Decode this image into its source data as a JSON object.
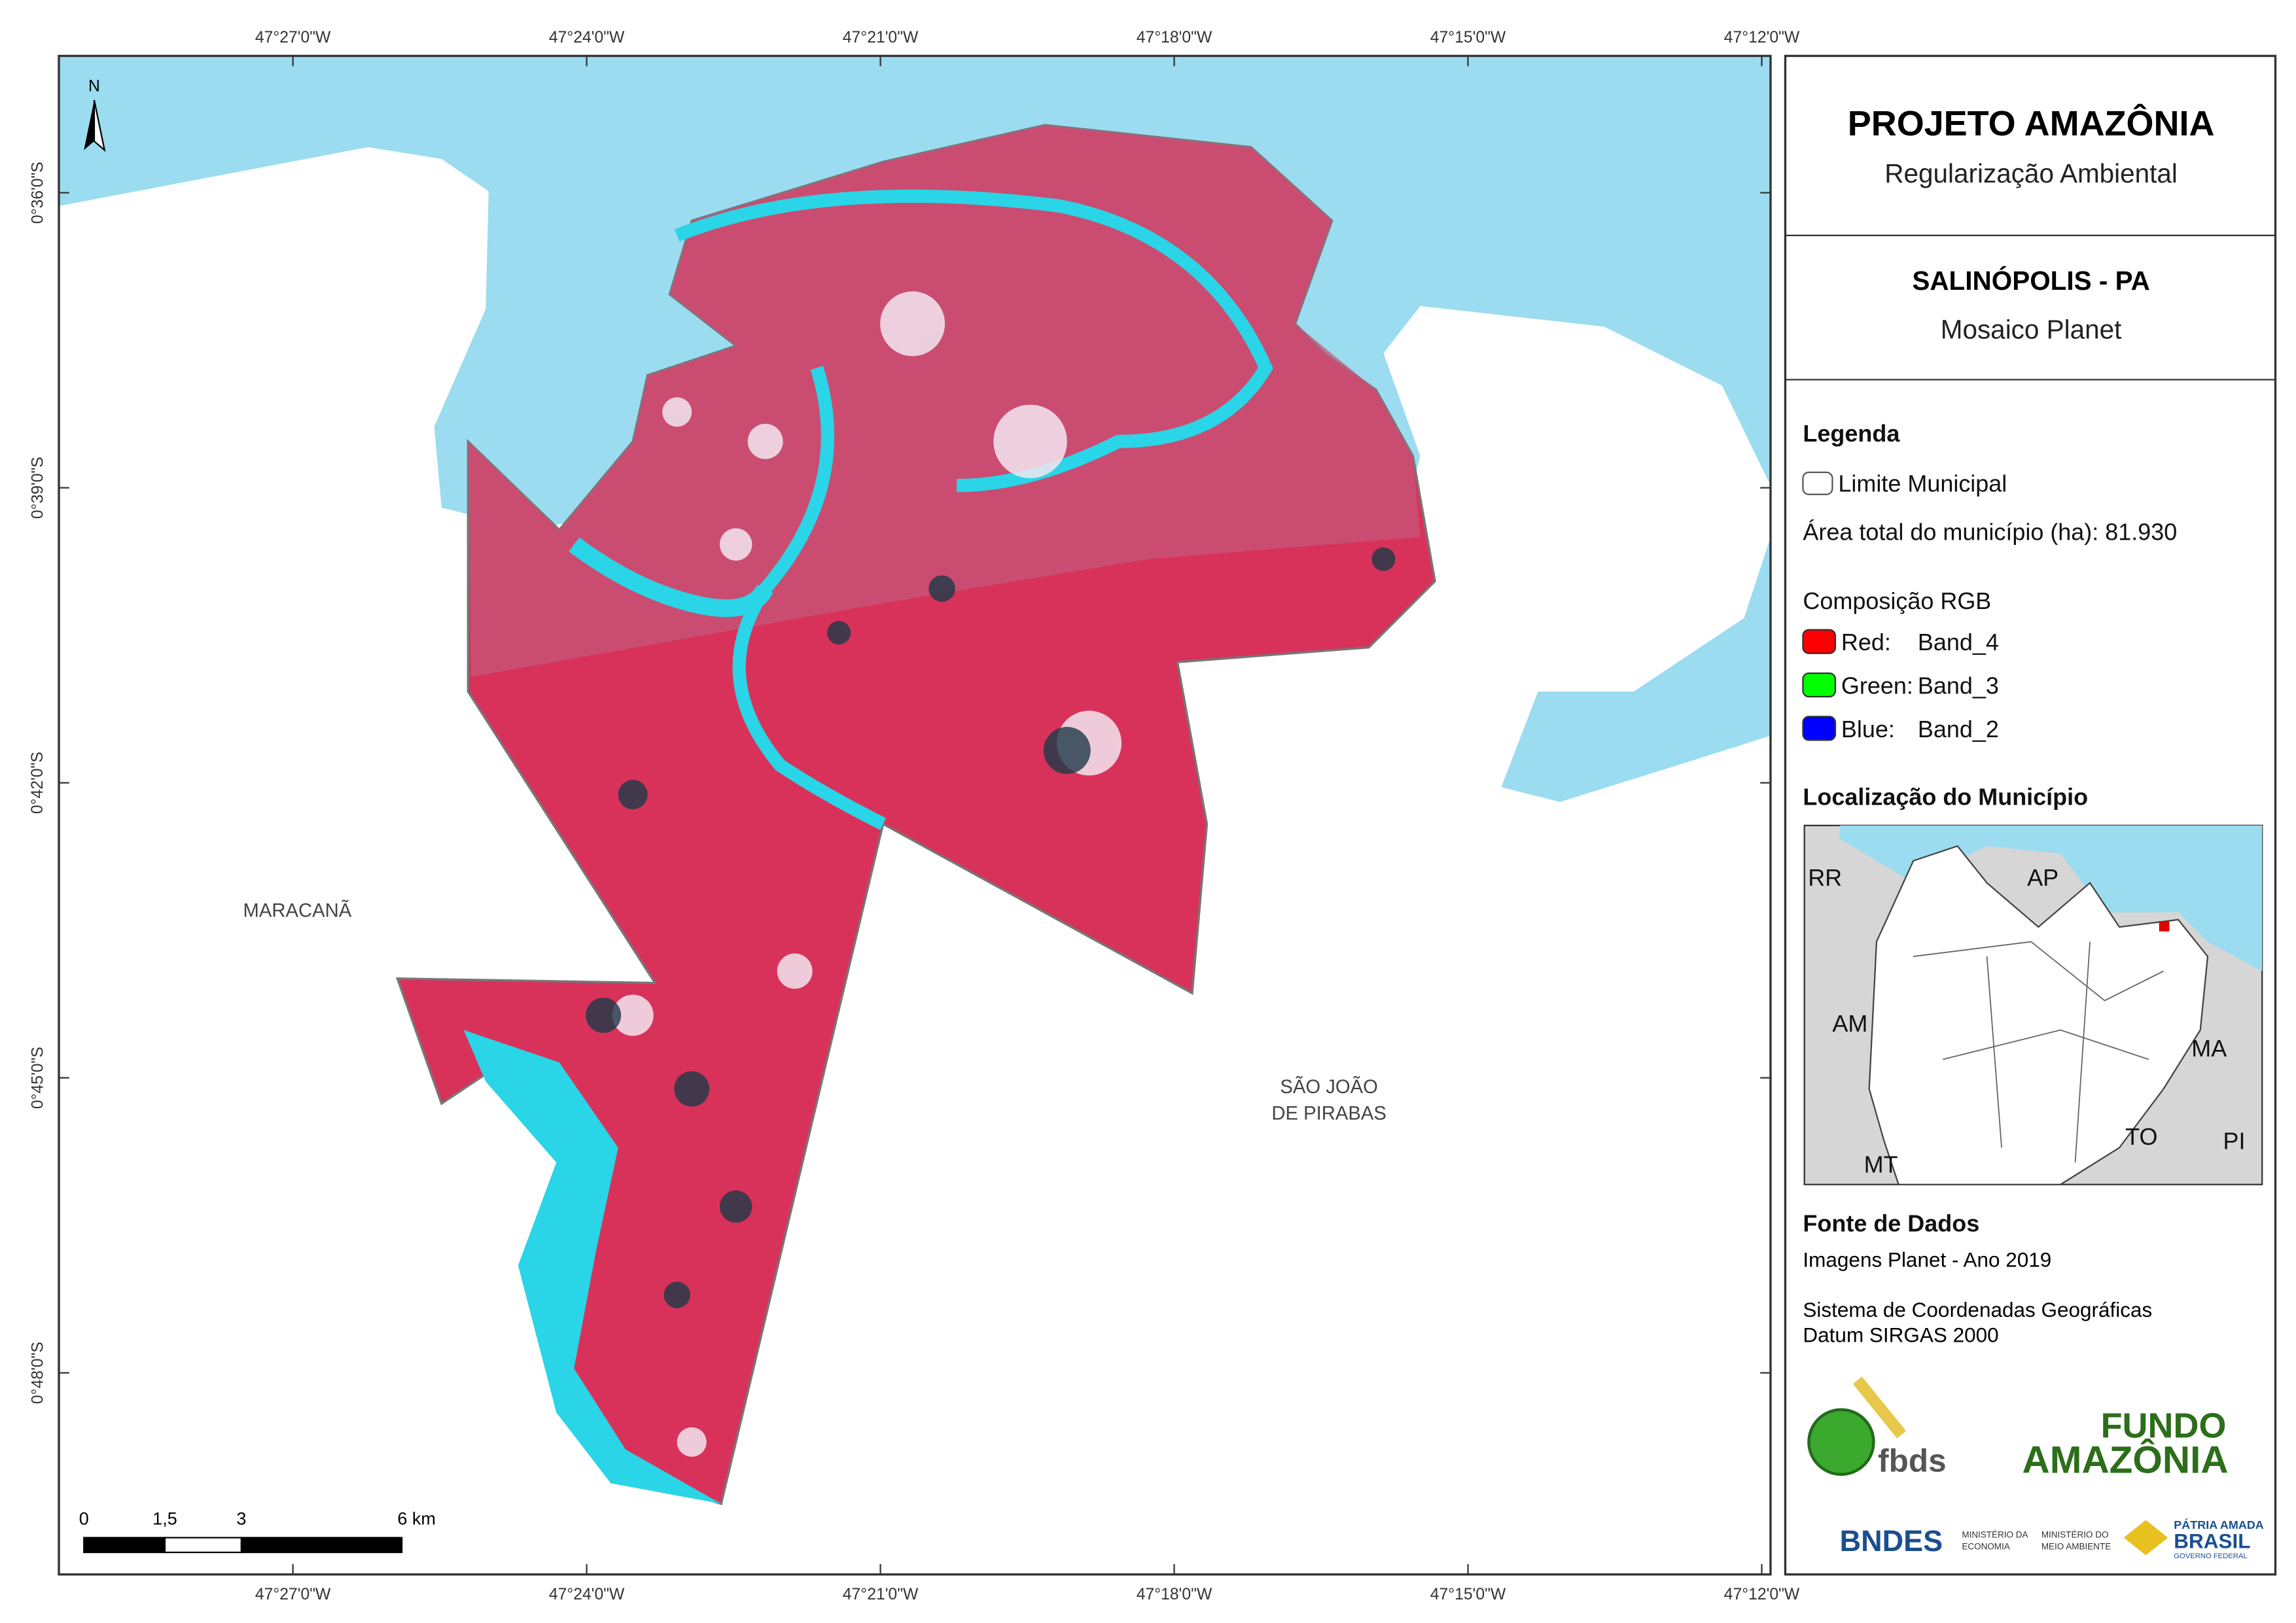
{
  "map": {
    "x_labels": [
      "47°27'0\"W",
      "47°24'0\"W",
      "47°21'0\"W",
      "47°18'0\"W",
      "47°15'0\"W",
      "47°12'0\"W"
    ],
    "y_labels": [
      "0°36'0\"S",
      "0°39'0\"S",
      "0°42'0\"S",
      "0°45'0\"S",
      "0°48'0\"S"
    ],
    "north": "N",
    "place_names": [
      "MARACANÃ",
      "SÃO JOÃO",
      "DE PIRABAS"
    ],
    "scale_labels": [
      "0",
      "1,5",
      "3",
      "6 km"
    ]
  },
  "panel": {
    "title": "PROJETO AMAZÔNIA",
    "subtitle": "Regularização Ambiental",
    "municipality": "SALINÓPOLIS - PA",
    "mosaic": "Mosaico Planet",
    "legend_title": "Legenda",
    "boundary": "Limite Municipal",
    "area": "Área total do município (ha): 81.930",
    "rgb_title": "Composição RGB",
    "bands": [
      {
        "channel": "Red:",
        "band": "Band_4"
      },
      {
        "channel": "Green:",
        "band": "Band_3"
      },
      {
        "channel": "Blue:",
        "band": "Band_2"
      }
    ],
    "location_title": "Localização do Município",
    "inset_labels": [
      "RR",
      "AP",
      "AM",
      "MA",
      "TO",
      "MT",
      "PI"
    ],
    "sources_title": "Fonte de Dados",
    "sources": [
      "Imagens Planet - Ano 2019",
      "Sistema de Coordenadas Geográficas",
      "Datum SIRGAS 2000"
    ],
    "logos": {
      "fbds": "fbds",
      "fundo_1": "FUNDO",
      "fundo_2": "AMAZÔNIA",
      "bndes": "BNDES",
      "economia_1": "MINISTÉRIO DA",
      "economia_2": "ECONOMIA",
      "ambiente_1": "MINISTÉRIO DO",
      "ambiente_2": "MEIO AMBIENTE",
      "brasil_1": "PÁTRIA AMADA",
      "brasil_2": "BRASIL",
      "brasil_3": "GOVERNO FEDERAL"
    }
  }
}
